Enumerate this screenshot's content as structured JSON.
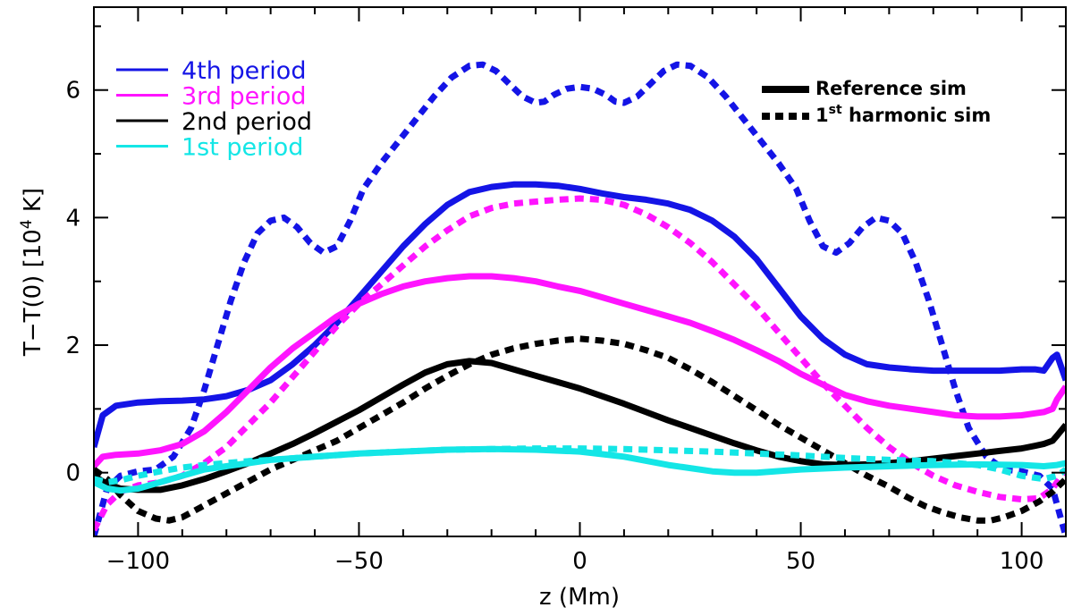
{
  "chart_data": {
    "type": "line",
    "xlabel": "z (Mm)",
    "ylabel_main": "T−T(0) [10",
    "ylabel_sup": "4",
    "ylabel_end": " K]",
    "xlim": [
      -110,
      110
    ],
    "ylim": [
      -1,
      7.3
    ],
    "xticks": [
      -100,
      -50,
      0,
      50,
      100
    ],
    "xtick_labels": [
      "−100",
      "−50",
      "0",
      "50",
      "100"
    ],
    "yticks": [
      0,
      2,
      4,
      6
    ],
    "ytick_labels": [
      "0",
      "2",
      "4",
      "6"
    ],
    "grid": false,
    "legend_periods": {
      "position": "top-left",
      "entries": [
        {
          "label": "4th period",
          "color": "#1414e6"
        },
        {
          "label": "3rd period",
          "color": "#ff14ff"
        },
        {
          "label": "2nd period",
          "color": "#000000"
        },
        {
          "label": "1st period",
          "color": "#14e6e6"
        }
      ]
    },
    "legend_sims": {
      "position": "top-right",
      "entries": [
        {
          "label": "Reference sim",
          "style": "solid"
        },
        {
          "label_pre": "1",
          "label_sup": "st",
          "label_post": " harmonic sim",
          "style": "dashed"
        }
      ]
    },
    "series": [
      {
        "period": "4th period",
        "sim": "Reference sim",
        "color": "#1414e6",
        "x": [
          -110,
          -108,
          -105,
          -100,
          -95,
          -90,
          -85,
          -80,
          -75,
          -70,
          -65,
          -60,
          -55,
          -50,
          -45,
          -40,
          -35,
          -30,
          -25,
          -20,
          -15,
          -10,
          -5,
          0,
          5,
          10,
          15,
          20,
          25,
          30,
          35,
          40,
          45,
          50,
          55,
          60,
          65,
          70,
          75,
          80,
          85,
          90,
          95,
          100,
          103,
          105,
          107,
          108,
          110
        ],
        "y": [
          0.4,
          0.9,
          1.05,
          1.1,
          1.12,
          1.13,
          1.15,
          1.2,
          1.3,
          1.45,
          1.7,
          2.0,
          2.35,
          2.75,
          3.15,
          3.55,
          3.9,
          4.2,
          4.4,
          4.48,
          4.52,
          4.52,
          4.5,
          4.45,
          4.38,
          4.32,
          4.28,
          4.22,
          4.12,
          3.95,
          3.7,
          3.35,
          2.9,
          2.45,
          2.1,
          1.85,
          1.7,
          1.65,
          1.62,
          1.6,
          1.6,
          1.6,
          1.6,
          1.62,
          1.62,
          1.6,
          1.8,
          1.85,
          1.45
        ]
      },
      {
        "period": "4th period",
        "sim": "1st harmonic sim",
        "color": "#1414e6",
        "x": [
          -110,
          -107,
          -104,
          -100,
          -96,
          -92,
          -88,
          -85,
          -82,
          -79,
          -76,
          -73,
          -70,
          -67,
          -64,
          -61,
          -58,
          -55,
          -52,
          -49,
          -45,
          -41,
          -37,
          -33,
          -29,
          -25,
          -22,
          -19,
          -16,
          -13,
          -10,
          -8,
          -6,
          -3,
          0,
          3,
          6,
          8,
          10,
          13,
          16,
          19,
          22,
          25,
          29,
          33,
          37,
          41,
          45,
          49,
          52,
          55,
          58,
          61,
          64,
          67,
          70,
          73,
          76,
          79,
          82,
          85,
          88,
          92,
          96,
          100,
          104,
          107,
          110
        ],
        "y": [
          -1.0,
          -0.25,
          -0.05,
          0.02,
          0.05,
          0.25,
          0.7,
          1.3,
          2.0,
          2.7,
          3.3,
          3.75,
          3.95,
          4.0,
          3.85,
          3.6,
          3.45,
          3.55,
          3.95,
          4.45,
          4.85,
          5.2,
          5.55,
          5.9,
          6.2,
          6.38,
          6.4,
          6.3,
          6.1,
          5.9,
          5.8,
          5.82,
          5.92,
          6.02,
          6.05,
          6.02,
          5.92,
          5.82,
          5.8,
          5.9,
          6.1,
          6.3,
          6.4,
          6.38,
          6.2,
          5.9,
          5.55,
          5.2,
          4.85,
          4.45,
          3.95,
          3.55,
          3.45,
          3.6,
          3.85,
          4.0,
          3.95,
          3.75,
          3.3,
          2.7,
          2.0,
          1.3,
          0.7,
          0.25,
          0.05,
          0.02,
          -0.05,
          -0.25,
          -1.0
        ]
      },
      {
        "period": "3rd period",
        "sim": "Reference sim",
        "color": "#ff14ff",
        "x": [
          -110,
          -108,
          -105,
          -100,
          -95,
          -90,
          -85,
          -80,
          -75,
          -70,
          -65,
          -60,
          -55,
          -50,
          -45,
          -40,
          -35,
          -30,
          -25,
          -20,
          -15,
          -10,
          -5,
          0,
          5,
          10,
          15,
          20,
          25,
          30,
          35,
          40,
          45,
          50,
          55,
          60,
          65,
          70,
          75,
          80,
          85,
          90,
          95,
          100,
          103,
          105,
          107,
          108,
          110
        ],
        "y": [
          0.1,
          0.25,
          0.28,
          0.3,
          0.35,
          0.45,
          0.65,
          0.95,
          1.3,
          1.65,
          1.95,
          2.2,
          2.45,
          2.65,
          2.8,
          2.92,
          3.0,
          3.05,
          3.08,
          3.08,
          3.05,
          3.0,
          2.92,
          2.85,
          2.75,
          2.65,
          2.55,
          2.45,
          2.35,
          2.22,
          2.08,
          1.92,
          1.75,
          1.55,
          1.38,
          1.22,
          1.12,
          1.05,
          1.0,
          0.95,
          0.9,
          0.88,
          0.88,
          0.9,
          0.93,
          0.95,
          1.0,
          1.15,
          1.35
        ]
      },
      {
        "period": "3rd period",
        "sim": "1st harmonic sim",
        "color": "#ff14ff",
        "x": [
          -110,
          -107,
          -104,
          -100,
          -95,
          -90,
          -85,
          -80,
          -75,
          -70,
          -65,
          -60,
          -55,
          -50,
          -45,
          -40,
          -35,
          -30,
          -25,
          -20,
          -15,
          -10,
          -5,
          0,
          5,
          10,
          15,
          20,
          25,
          30,
          35,
          40,
          45,
          50,
          55,
          60,
          65,
          70,
          75,
          80,
          85,
          90,
          95,
          100,
          104,
          107,
          110
        ],
        "y": [
          -0.9,
          -0.5,
          -0.3,
          -0.2,
          -0.15,
          -0.05,
          0.15,
          0.4,
          0.75,
          1.1,
          1.5,
          1.9,
          2.3,
          2.65,
          2.95,
          3.25,
          3.55,
          3.8,
          4.02,
          4.15,
          4.22,
          4.25,
          4.28,
          4.3,
          4.28,
          4.2,
          4.05,
          3.85,
          3.6,
          3.3,
          2.95,
          2.6,
          2.2,
          1.8,
          1.4,
          1.05,
          0.7,
          0.4,
          0.15,
          -0.05,
          -0.2,
          -0.3,
          -0.38,
          -0.42,
          -0.4,
          -0.25,
          0.05
        ]
      },
      {
        "period": "2nd period",
        "sim": "Reference sim",
        "color": "#000000",
        "x": [
          -110,
          -107,
          -104,
          -100,
          -95,
          -90,
          -85,
          -80,
          -75,
          -70,
          -65,
          -60,
          -55,
          -50,
          -45,
          -40,
          -35,
          -30,
          -25,
          -20,
          -15,
          -10,
          -5,
          0,
          5,
          10,
          15,
          20,
          25,
          30,
          35,
          40,
          45,
          50,
          55,
          60,
          65,
          70,
          75,
          80,
          85,
          90,
          95,
          100,
          103,
          105,
          107,
          108,
          110
        ],
        "y": [
          -0.05,
          -0.18,
          -0.25,
          -0.27,
          -0.27,
          -0.2,
          -0.1,
          0.02,
          0.15,
          0.3,
          0.45,
          0.62,
          0.8,
          0.98,
          1.18,
          1.38,
          1.57,
          1.7,
          1.75,
          1.72,
          1.62,
          1.52,
          1.42,
          1.32,
          1.2,
          1.08,
          0.95,
          0.82,
          0.7,
          0.58,
          0.46,
          0.35,
          0.25,
          0.18,
          0.13,
          0.12,
          0.13,
          0.15,
          0.18,
          0.22,
          0.26,
          0.3,
          0.34,
          0.38,
          0.42,
          0.45,
          0.5,
          0.58,
          0.75
        ]
      },
      {
        "period": "2nd period",
        "sim": "1st harmonic sim",
        "color": "#000000",
        "x": [
          -110,
          -107,
          -104,
          -100,
          -96,
          -93,
          -90,
          -86,
          -82,
          -78,
          -74,
          -70,
          -65,
          -60,
          -55,
          -50,
          -45,
          -40,
          -35,
          -30,
          -25,
          -20,
          -15,
          -10,
          -5,
          0,
          5,
          10,
          15,
          20,
          25,
          30,
          35,
          40,
          45,
          50,
          55,
          60,
          65,
          70,
          74,
          78,
          82,
          86,
          90,
          93,
          96,
          100,
          104,
          107,
          110
        ],
        "y": [
          0.05,
          -0.1,
          -0.35,
          -0.6,
          -0.72,
          -0.75,
          -0.7,
          -0.55,
          -0.4,
          -0.25,
          -0.1,
          0.05,
          0.2,
          0.35,
          0.5,
          0.7,
          0.9,
          1.1,
          1.32,
          1.52,
          1.7,
          1.85,
          1.95,
          2.02,
          2.07,
          2.1,
          2.07,
          2.02,
          1.92,
          1.8,
          1.62,
          1.42,
          1.2,
          0.98,
          0.75,
          0.55,
          0.35,
          0.15,
          -0.05,
          -0.22,
          -0.38,
          -0.52,
          -0.62,
          -0.7,
          -0.75,
          -0.75,
          -0.7,
          -0.6,
          -0.45,
          -0.3,
          -0.1
        ]
      },
      {
        "period": "1st period",
        "sim": "Reference sim",
        "color": "#14e6e6",
        "x": [
          -110,
          -107,
          -104,
          -100,
          -95,
          -90,
          -85,
          -80,
          -75,
          -70,
          -60,
          -50,
          -40,
          -30,
          -20,
          -10,
          0,
          10,
          20,
          30,
          35,
          40,
          50,
          60,
          70,
          80,
          90,
          100,
          105,
          108,
          110
        ],
        "y": [
          -0.15,
          -0.25,
          -0.28,
          -0.25,
          -0.15,
          -0.05,
          0.05,
          0.1,
          0.15,
          0.2,
          0.25,
          0.3,
          0.33,
          0.36,
          0.37,
          0.36,
          0.33,
          0.25,
          0.12,
          0.02,
          0.0,
          0.0,
          0.05,
          0.08,
          0.1,
          0.12,
          0.13,
          0.12,
          0.1,
          0.12,
          0.15
        ]
      },
      {
        "period": "1st period",
        "sim": "1st harmonic sim",
        "color": "#14e6e6",
        "x": [
          -110,
          -107,
          -104,
          -100,
          -95,
          -90,
          -85,
          -80,
          -75,
          -70,
          -60,
          -50,
          -40,
          -30,
          -20,
          -10,
          0,
          10,
          20,
          30,
          40,
          50,
          60,
          70,
          80,
          90,
          95,
          100,
          105,
          108,
          110
        ],
        "y": [
          -0.1,
          -0.15,
          -0.12,
          -0.05,
          0.02,
          0.08,
          0.12,
          0.15,
          0.18,
          0.2,
          0.25,
          0.3,
          0.33,
          0.36,
          0.37,
          0.38,
          0.38,
          0.37,
          0.35,
          0.33,
          0.3,
          0.27,
          0.23,
          0.2,
          0.18,
          0.12,
          0.05,
          -0.05,
          -0.1,
          -0.05,
          0.05
        ]
      }
    ]
  }
}
